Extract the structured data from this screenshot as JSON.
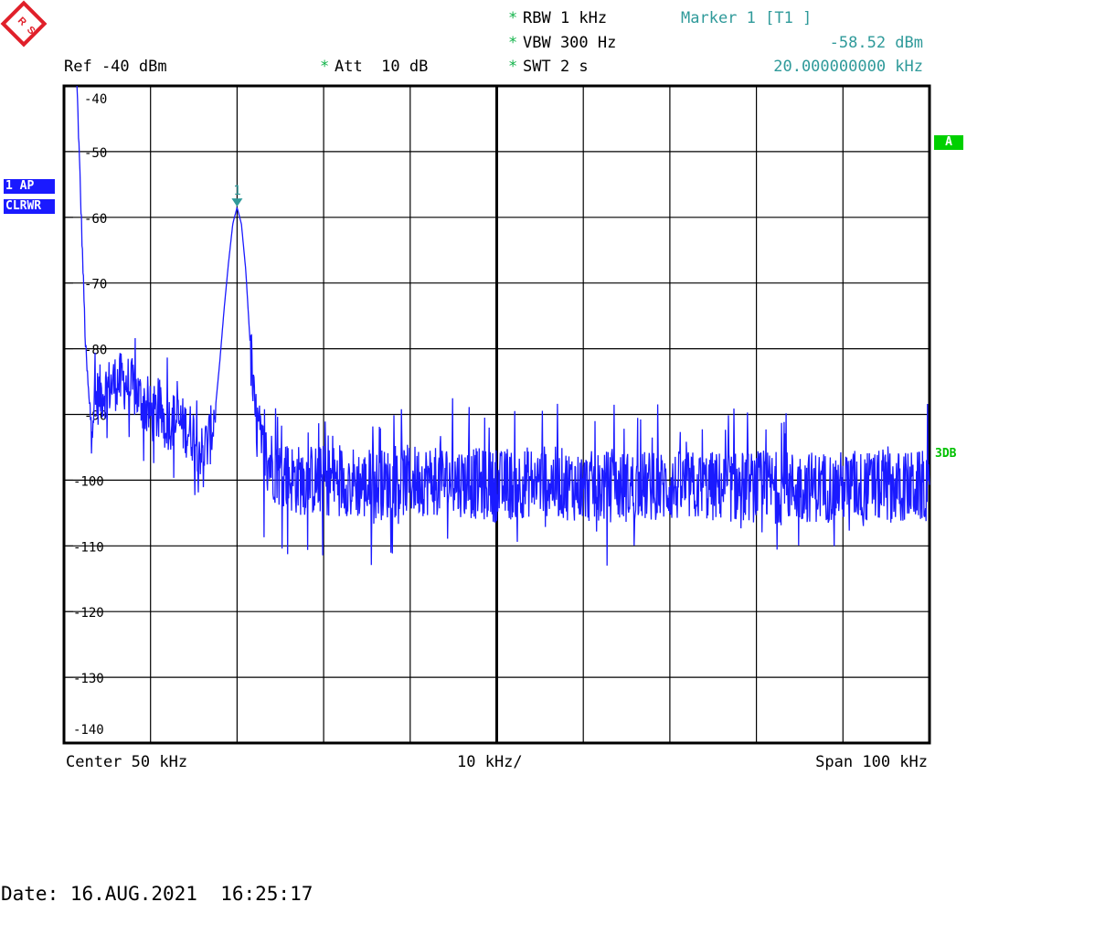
{
  "header": {
    "ref": "Ref -40 dBm",
    "att_star": "*",
    "att": "Att  10 dB",
    "rbw_star": "*",
    "rbw": "RBW 1 kHz",
    "vbw_star": "*",
    "vbw": "VBW 300 Hz",
    "swt_star": "*",
    "swt": "SWT 2 s",
    "marker_title": "Marker 1 [T1 ]",
    "marker_level": "-58.52 dBm",
    "marker_freq": "20.000000000 kHz"
  },
  "side": {
    "trace_line1": "1 AP",
    "trace_line2": "CLRWR",
    "indicator_a": "A",
    "indicator_3db": "3DB"
  },
  "footer": {
    "center": "Center 50 kHz",
    "div": "10 kHz/",
    "span": "Span 100 kHz",
    "date": "Date: 16.AUG.2021  16:25:17"
  },
  "colors": {
    "trace": "#1a1aff",
    "marker": "#2f9a9a",
    "grid": "#000000",
    "logo": "#e0202a"
  },
  "chart_data": {
    "type": "line",
    "title": "",
    "xlabel": "",
    "ylabel": "",
    "xlim": [
      0,
      100
    ],
    "ylim": [
      -140,
      -40
    ],
    "grid": true,
    "y_tick_labels": [
      "-40",
      "-50",
      "-60",
      "-70",
      "-80",
      "-90",
      "-100",
      "-110",
      "-120",
      "-130",
      "-140"
    ],
    "marker": {
      "label": "1",
      "x": 20,
      "y": -58.52
    },
    "series": [
      {
        "x": [
          1.5,
          2,
          2.5,
          3,
          4,
          5,
          6,
          7,
          8,
          9,
          10,
          11,
          12,
          13,
          14,
          15,
          16,
          17,
          17.5,
          18,
          18.5,
          19,
          19.5,
          20,
          20.5,
          21,
          21.5,
          22,
          23,
          25,
          27,
          30,
          33,
          35,
          40,
          45,
          50,
          55,
          60,
          65,
          70,
          75,
          80,
          85,
          90,
          95,
          100
        ],
        "values": [
          -40,
          -60,
          -80,
          -90,
          -87,
          -86,
          -85,
          -85,
          -86,
          -88,
          -90,
          -90,
          -91,
          -91,
          -92,
          -93,
          -96,
          -93,
          -89,
          -82,
          -74,
          -67,
          -61,
          -58.5,
          -61,
          -68,
          -79,
          -90,
          -96,
          -99,
          -100,
          -100,
          -100,
          -101,
          -100,
          -100,
          -101,
          -100,
          -101,
          -101,
          -101,
          -101,
          -101,
          -101,
          -101,
          -101,
          -101
        ]
      }
    ]
  }
}
